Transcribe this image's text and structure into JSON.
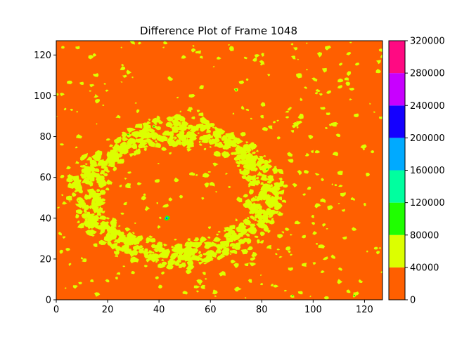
{
  "chart_data": {
    "type": "heatmap",
    "subtype": "filled-contour",
    "title": "Difference Plot of Frame 1048",
    "xlabel": "",
    "ylabel": "",
    "xlim": [
      0,
      127
    ],
    "ylim": [
      0,
      127
    ],
    "x_ticks": [
      "0",
      "20",
      "40",
      "60",
      "80",
      "100",
      "120"
    ],
    "y_ticks": [
      "0",
      "20",
      "40",
      "60",
      "80",
      "100",
      "120"
    ],
    "colorbar": {
      "levels": [
        0,
        40000,
        80000,
        120000,
        160000,
        200000,
        240000,
        280000,
        320000
      ],
      "tick_labels": [
        "0",
        "40000",
        "80000",
        "120000",
        "160000",
        "200000",
        "240000",
        "280000",
        "320000"
      ],
      "colors": [
        "#ff5f00",
        "#dcff00",
        "#1fff00",
        "#00ff9f",
        "#00aaff",
        "#1400ff",
        "#c800ff",
        "#ff0a82"
      ]
    },
    "background_level_color": "#ff5f00",
    "features": [
      {
        "description": "ring of scattered 40000-80000 patches",
        "center": [
          47,
          52
        ],
        "radius_x": 35,
        "radius_y": 30
      },
      {
        "description": "isolated peak",
        "x": 43,
        "y": 40,
        "level_range": [
          160000,
          240000
        ]
      },
      {
        "description": "small 80000-120000 spots",
        "points": [
          [
            28,
            81
          ],
          [
            38,
            85
          ],
          [
            82,
            64
          ],
          [
            92,
            2
          ],
          [
            116,
            2
          ],
          [
            70,
            103
          ]
        ]
      }
    ]
  }
}
